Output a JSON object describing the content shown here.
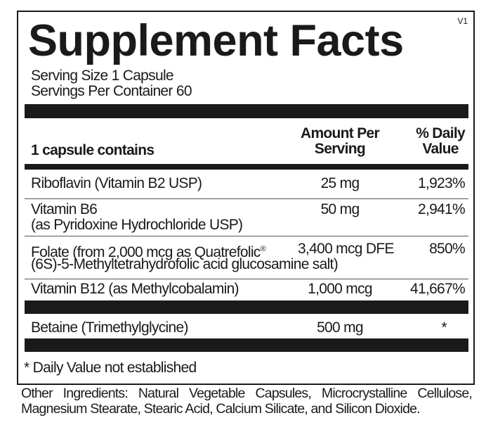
{
  "title": "Supplement Facts",
  "version": "V1",
  "serving_size": "Serving Size 1 Capsule",
  "servings_per_container": "Servings Per Container 60",
  "header": {
    "contains": "1 capsule contains",
    "amount_line1": "Amount Per",
    "amount_line2": "Serving",
    "dv_line1": "% Daily",
    "dv_line2": "Value"
  },
  "rows": [
    {
      "name": "Riboflavin (Vitamin B2 USP)",
      "amount": "25 mg",
      "dv": "1,923%"
    },
    {
      "name": "Vitamin B6",
      "name2": "(as Pyridoxine Hydrochloride USP)",
      "amount": "50 mg",
      "dv": "2,941%"
    },
    {
      "name": "Folate (from 2,000 mcg as Quatrefolic",
      "reg": "®",
      "name2": "(6S)-5-Methyltetrahydrofolic acid glucosamine salt)",
      "amount": "3,400 mcg DFE",
      "dv": "850%"
    },
    {
      "name": "Vitamin B12 (as Methylcobalamin)",
      "amount": "1,000 mcg",
      "dv": "41,667%"
    },
    {
      "name": "Betaine (Trimethylglycine)",
      "amount": "500 mg",
      "dv": "*"
    }
  ],
  "footnote": "* Daily Value not established",
  "other_ingredients": "Other Ingredients: Natural Vegetable Capsules, Microcrystalline Cellulose, Magnesium Stearate, Stearic Acid, Calcium Silicate, and Silicon Dioxide."
}
